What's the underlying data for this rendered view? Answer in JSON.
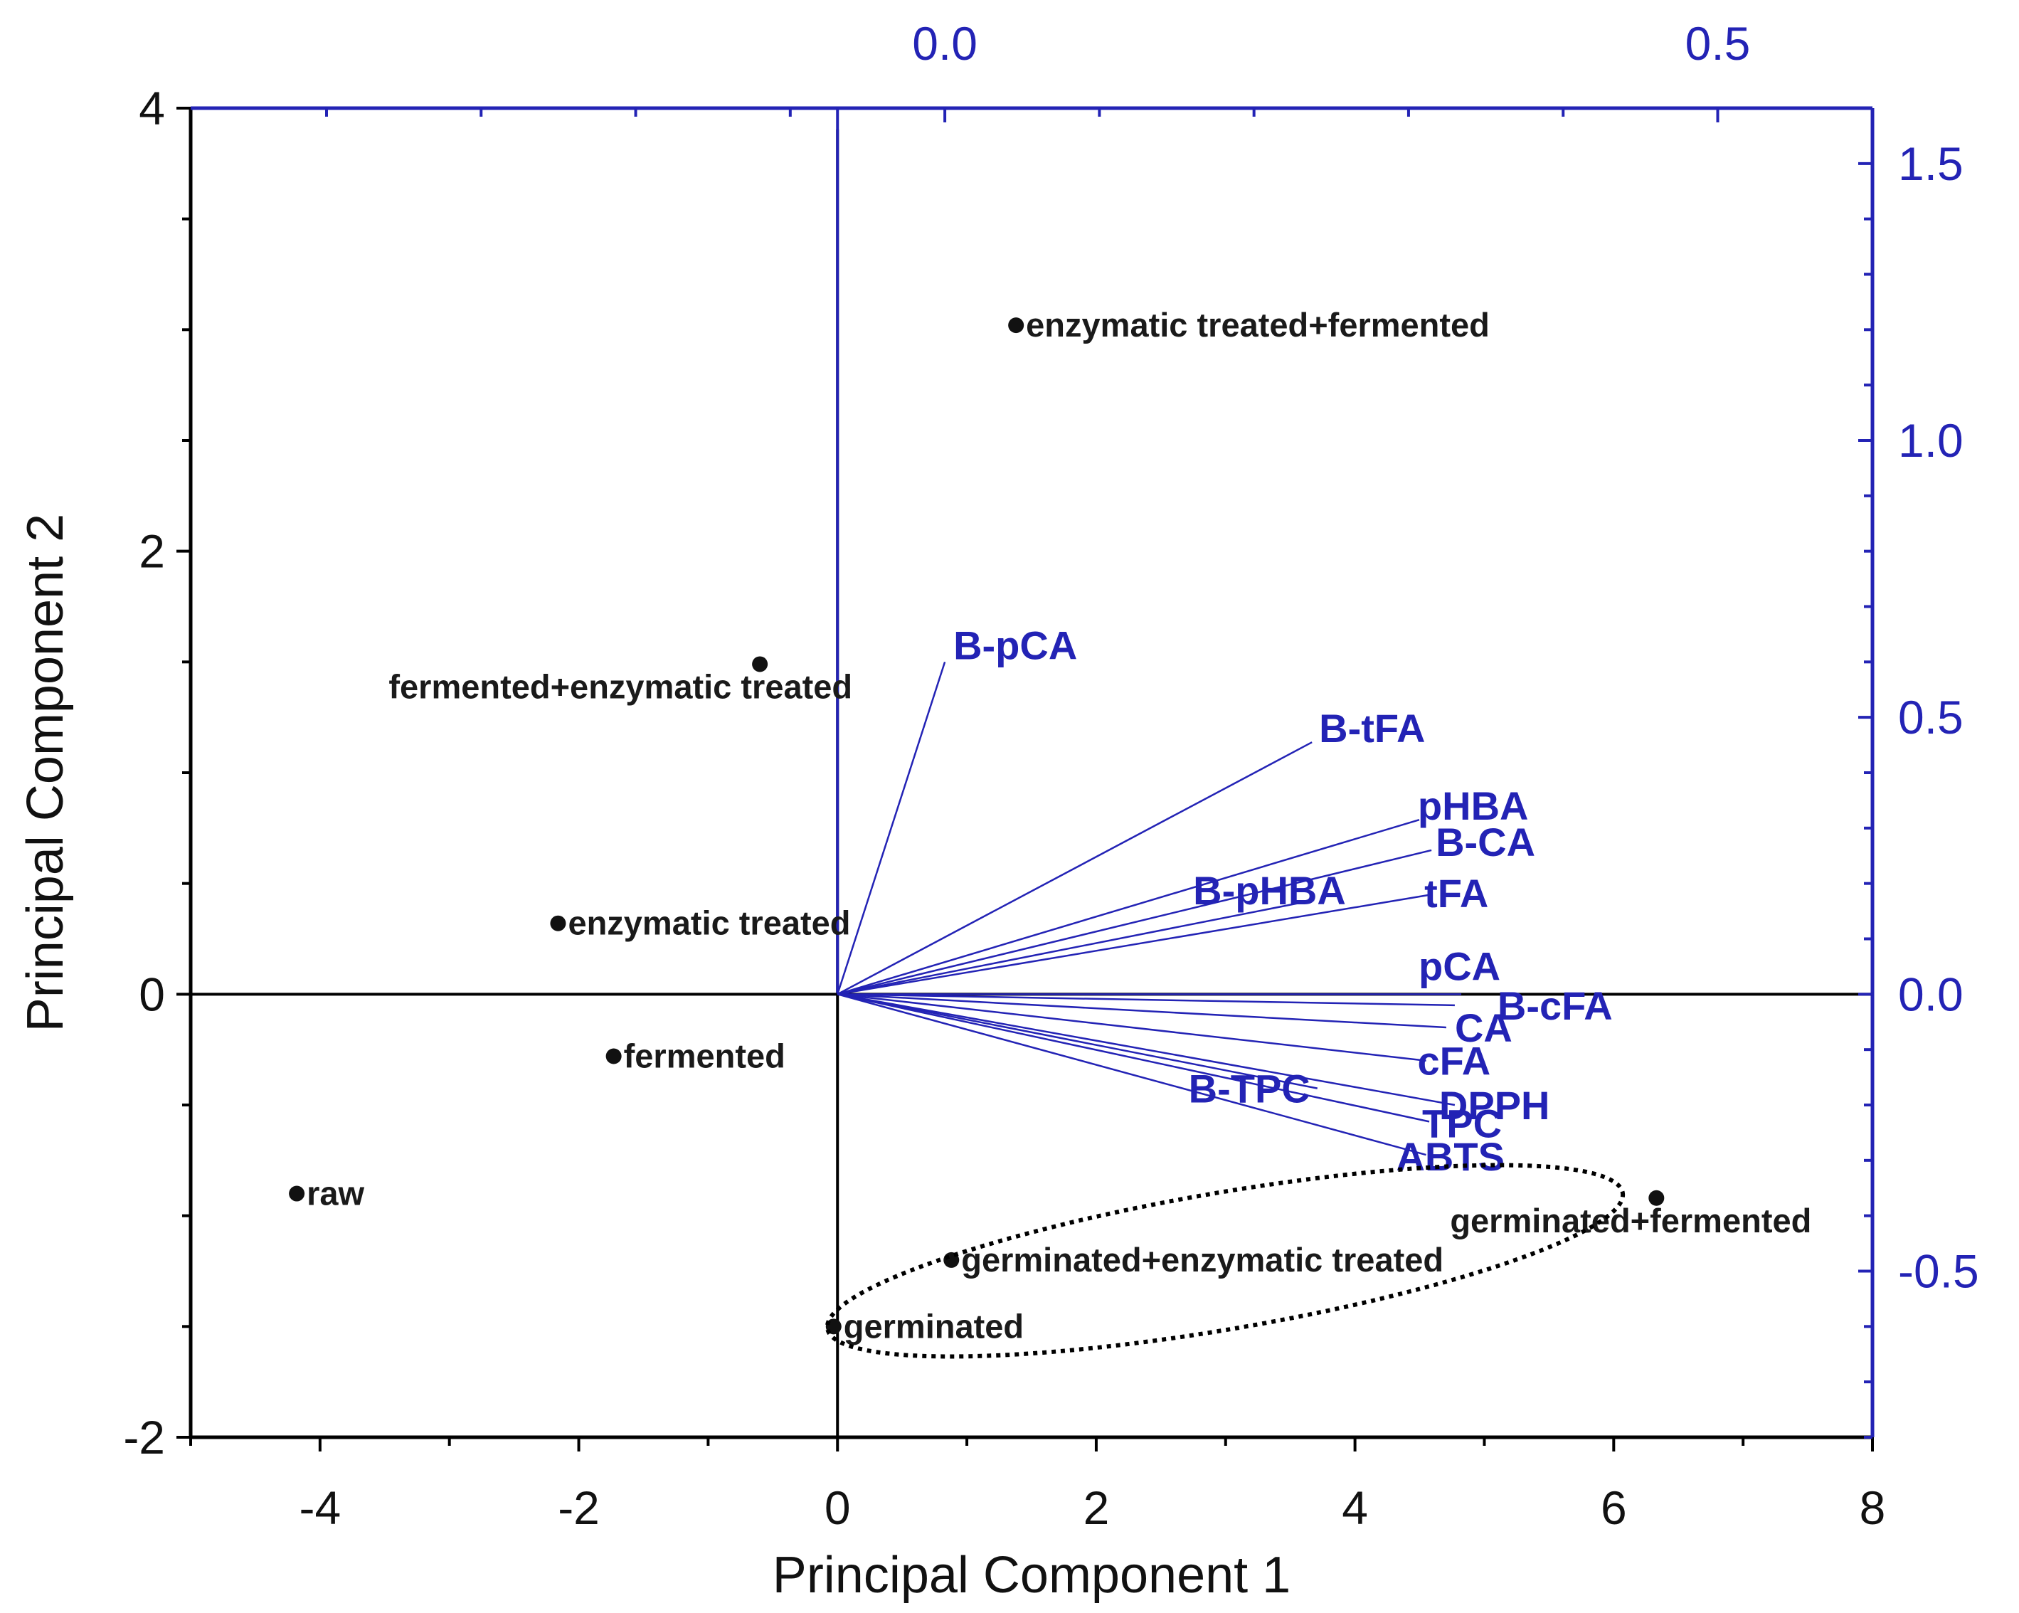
{
  "chart_data": {
    "type": "scatter",
    "subtype": "pca-biplot",
    "xlabel": "Principal Component 1",
    "ylabel": "Principal Component 2",
    "xlim": [
      -5,
      8
    ],
    "ylim": [
      -2,
      4
    ],
    "x_ticks": [
      "-4",
      "-2",
      "0",
      "2",
      "4",
      "6",
      "8"
    ],
    "y_ticks": [
      "-2",
      "0",
      "2",
      "4"
    ],
    "secondary_xlim": [
      -0.4879,
      0.6001
    ],
    "secondary_ylim": [
      -0.8,
      1.6
    ],
    "secondary_x_ticks": [
      "0.0",
      "0.5"
    ],
    "secondary_y_ticks": [
      "-0.5",
      "0.0",
      "0.5",
      "1.0",
      "1.5"
    ],
    "colors": {
      "scores": "#111111",
      "loadings": "#2323b5"
    },
    "scores": [
      {
        "label": "enzymatic treated+fermented",
        "x": 1.38,
        "y": 3.02
      },
      {
        "label": "fermented+enzymatic treated",
        "x": -0.6,
        "y": 1.49
      },
      {
        "label": "enzymatic treated",
        "x": -2.16,
        "y": 0.32
      },
      {
        "label": "fermented",
        "x": -1.73,
        "y": -0.28
      },
      {
        "label": "raw",
        "x": -4.18,
        "y": -0.9
      },
      {
        "label": "germinated+fermented",
        "x": 6.33,
        "y": -0.92
      },
      {
        "label": "germinated+enzymatic treated",
        "x": 0.88,
        "y": -1.2
      },
      {
        "label": "germinated",
        "x": -0.03,
        "y": -1.5
      }
    ],
    "loadings": [
      {
        "label": "B-pCA",
        "x": 0.0,
        "y": 0.6
      },
      {
        "label": "B-tFA",
        "x": 0.2375,
        "y": 0.455
      },
      {
        "label": "pHBA",
        "x": 0.3069,
        "y": 0.315
      },
      {
        "label": "B-CA",
        "x": 0.3148,
        "y": 0.26
      },
      {
        "label": "B-pHBA",
        "x": 0.2389,
        "y": 0.17
      },
      {
        "label": "tFA",
        "x": 0.3148,
        "y": 0.18
      },
      {
        "label": "pCA",
        "x": 0.3341,
        "y": 0.0
      },
      {
        "label": "B-cFA",
        "x": 0.3299,
        "y": -0.02
      },
      {
        "label": "CA",
        "x": 0.3244,
        "y": -0.06
      },
      {
        "label": "cFA",
        "x": 0.3113,
        "y": -0.12
      },
      {
        "label": "B-TPC",
        "x": 0.241,
        "y": -0.17
      },
      {
        "label": "DPPH",
        "x": 0.3299,
        "y": -0.2
      },
      {
        "label": "TPC",
        "x": 0.3134,
        "y": -0.23
      },
      {
        "label": "ABTS",
        "x": 0.3113,
        "y": -0.29
      }
    ],
    "annotations": [
      {
        "type": "dotted-ellipse",
        "encloses": [
          "germinated",
          "germinated+enzymatic treated",
          "germinated+fermented"
        ]
      }
    ]
  }
}
